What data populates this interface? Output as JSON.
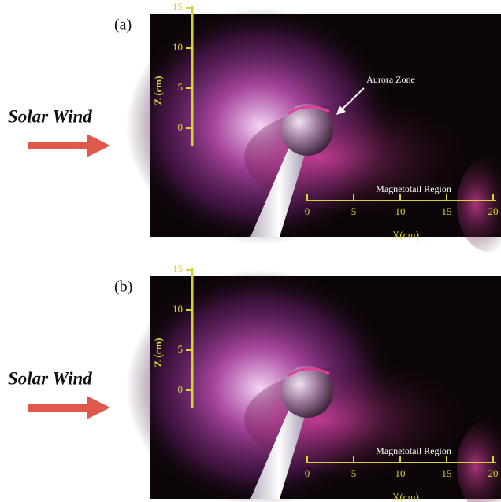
{
  "panels": [
    {
      "label": "(a)",
      "side_label": "Solar Wind",
      "z_axis": {
        "title": "Z (cm)",
        "ticks": [
          15,
          10,
          5,
          0
        ]
      },
      "x_axis": {
        "title": "X(cm)",
        "ticks": [
          0,
          5,
          10,
          15,
          20
        ]
      },
      "region_label": "Magnetotail Region",
      "annotation": "Aurora Zone"
    },
    {
      "label": "(b)",
      "side_label": "Solar Wind",
      "z_axis": {
        "title": "Z (cm)",
        "ticks": [
          15,
          10,
          5,
          0
        ]
      },
      "x_axis": {
        "title": "X(cm)",
        "ticks": [
          0,
          5,
          10,
          15,
          20
        ]
      },
      "region_label": "Magnetotail Region"
    }
  ]
}
